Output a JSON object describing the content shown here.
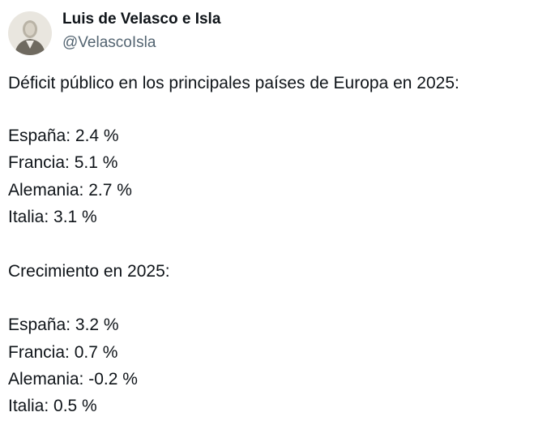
{
  "author": {
    "name": "Luis de Velasco e Isla",
    "handle": "@VelascoIsla"
  },
  "tweet": {
    "heading_deficit": "Déficit público en los principales países de Europa en 2025:",
    "deficit": [
      "España: 2.4 %",
      "Francia: 5.1 %",
      "Alemania: 2.7 %",
      "Italia: 3.1 %"
    ],
    "heading_growth": "Crecimiento en 2025:",
    "growth": [
      "España: 3.2 %",
      "Francia: 0.7 %",
      "Alemania: -0.2 %",
      "Italia: 0.5 %"
    ]
  }
}
